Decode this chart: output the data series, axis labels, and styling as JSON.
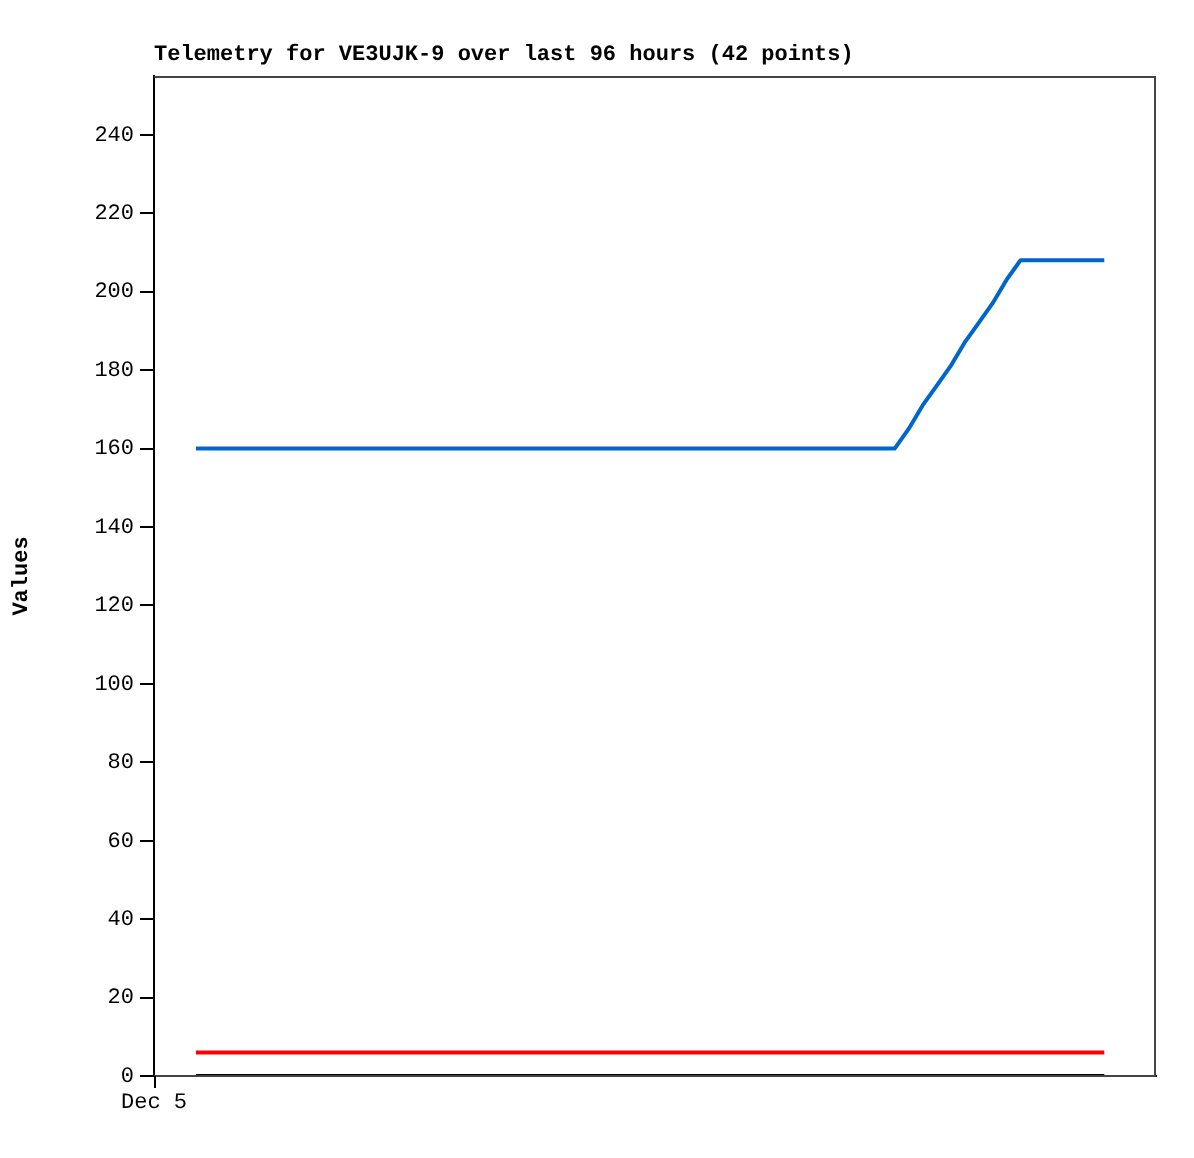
{
  "chart_data": {
    "type": "line",
    "title": "Telemetry for VE3UJK-9 over last 96 hours (42 points)",
    "ylabel": "Values",
    "annotations": [
      "Dec 5"
    ],
    "categories": [
      null,
      null,
      null,
      null,
      null,
      null,
      null,
      null,
      null,
      null,
      null,
      null,
      null,
      null,
      null,
      null,
      null,
      null,
      null,
      null,
      null,
      null,
      null,
      null,
      null,
      null,
      null,
      null,
      null,
      null,
      null,
      null,
      null,
      null,
      null,
      null,
      null,
      null,
      null,
      null,
      null,
      null,
      null,
      null,
      null,
      null,
      null,
      null,
      null,
      null,
      null,
      null,
      null,
      null,
      null,
      null,
      null,
      null,
      null,
      null,
      null,
      null,
      null,
      null,
      null,
      null
    ],
    "ylim": [
      0,
      255
    ],
    "yticks": [
      0,
      20,
      40,
      60,
      80,
      100,
      120,
      140,
      160,
      180,
      200,
      220,
      240
    ],
    "marker": "none",
    "line_style": "solid",
    "legend": false,
    "series": [
      {
        "color": "#0066cc",
        "values": [
          160,
          160,
          160,
          160,
          160,
          160,
          160,
          160,
          160,
          160,
          160,
          160,
          160,
          160,
          160,
          160,
          160,
          160,
          160,
          160,
          160,
          160,
          160,
          160,
          160,
          160,
          160,
          160,
          160,
          160,
          160,
          160,
          160,
          160,
          160,
          160,
          160,
          160,
          160,
          160,
          160,
          160,
          160,
          160,
          160,
          160,
          160,
          160,
          160,
          160,
          160,
          165,
          171,
          176,
          181,
          187,
          192,
          197,
          203,
          208,
          208,
          208,
          208,
          208,
          208,
          208
        ]
      },
      {
        "color": "#ff0000",
        "values": [
          6,
          6,
          6,
          6,
          6,
          6,
          6,
          6,
          6,
          6,
          6,
          6,
          6,
          6,
          6,
          6,
          6,
          6,
          6,
          6,
          6,
          6,
          6,
          6,
          6,
          6,
          6,
          6,
          6,
          6,
          6,
          6,
          6,
          6,
          6,
          6,
          6,
          6,
          6,
          6,
          6,
          6,
          6,
          6,
          6,
          6,
          6,
          6,
          6,
          6,
          6,
          6,
          6,
          6,
          6,
          6,
          6,
          6,
          6,
          6,
          6,
          6,
          6,
          6,
          6,
          6
        ]
      },
      {
        "color": "#000000",
        "values": [
          0,
          0,
          0,
          0,
          0,
          0,
          0,
          0,
          0,
          0,
          0,
          0,
          0,
          0,
          0,
          0,
          0,
          0,
          0,
          0,
          0,
          0,
          0,
          0,
          0,
          0,
          0,
          0,
          0,
          0,
          0,
          0,
          0,
          0,
          0,
          0,
          0,
          0,
          0,
          0,
          0,
          0,
          0,
          0,
          0,
          0,
          0,
          0,
          0,
          0,
          0,
          0,
          0,
          0,
          0,
          0,
          0,
          0,
          0,
          0,
          0,
          0,
          0,
          0,
          0,
          0
        ]
      }
    ]
  }
}
